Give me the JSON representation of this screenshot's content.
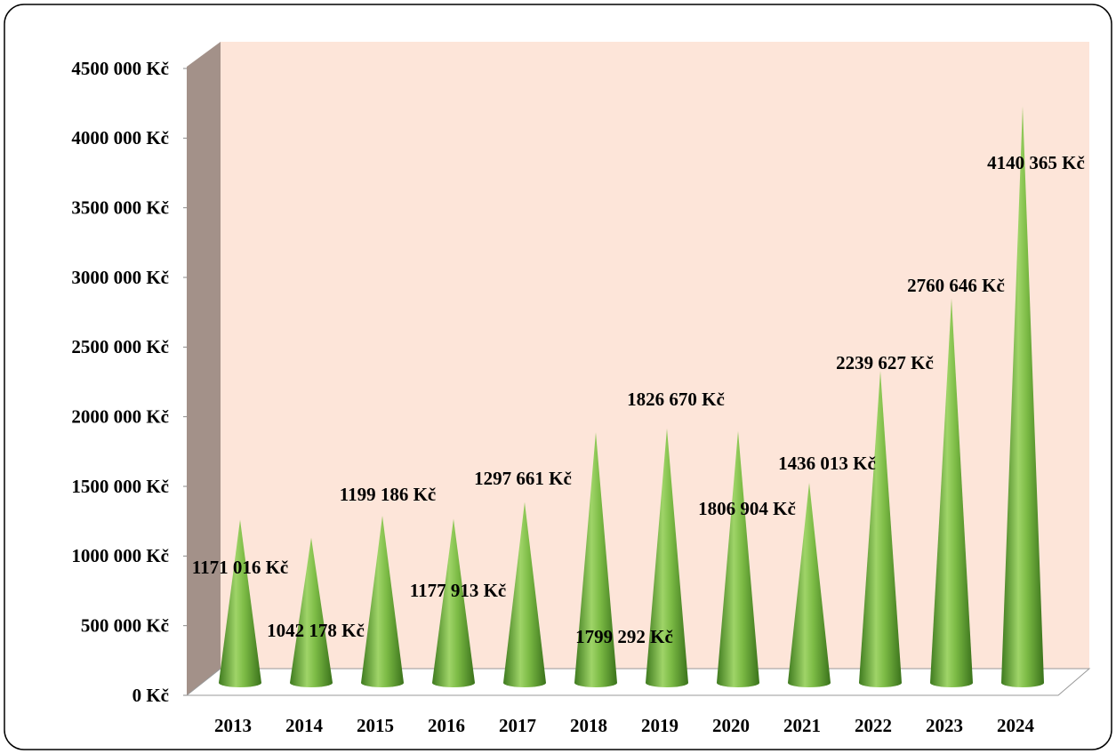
{
  "chart_data": {
    "type": "cone",
    "categories": [
      "2013",
      "2014",
      "2015",
      "2016",
      "2017",
      "2018",
      "2019",
      "2020",
      "2021",
      "2022",
      "2023",
      "2024"
    ],
    "values": [
      1171016,
      1042178,
      1199186,
      1177913,
      1297661,
      1799292,
      1826670,
      1806904,
      1436013,
      2239627,
      2760646,
      4140365
    ],
    "value_labels": [
      "1171 016 Kč",
      "1042 178 Kč",
      "1199 186 Kč",
      "1177 913 Kč",
      "1297 661 Kč",
      "1799 292 Kč",
      "1826 670 Kč",
      "1806 904 Kč",
      "1436 013 Kč",
      "2239 627 Kč",
      "2760 646 Kč",
      "4140 365 Kč"
    ],
    "color": "#6aaa3a",
    "ylim": [
      0,
      4500000
    ],
    "yticks": [
      {
        "value": 0,
        "label": "0 Kč"
      },
      {
        "value": 500000,
        "label": "500 000 Kč"
      },
      {
        "value": 1000000,
        "label": "1000 000 Kč"
      },
      {
        "value": 1500000,
        "label": "1500 000 Kč"
      },
      {
        "value": 2000000,
        "label": "2000 000 Kč"
      },
      {
        "value": 2500000,
        "label": "2500 000 Kč"
      },
      {
        "value": 3000000,
        "label": "3000 000 Kč"
      },
      {
        "value": 3500000,
        "label": "3500 000 Kč"
      },
      {
        "value": 4000000,
        "label": "4000 000 Kč"
      },
      {
        "value": 4500000,
        "label": "4500 000 Kč"
      }
    ]
  }
}
